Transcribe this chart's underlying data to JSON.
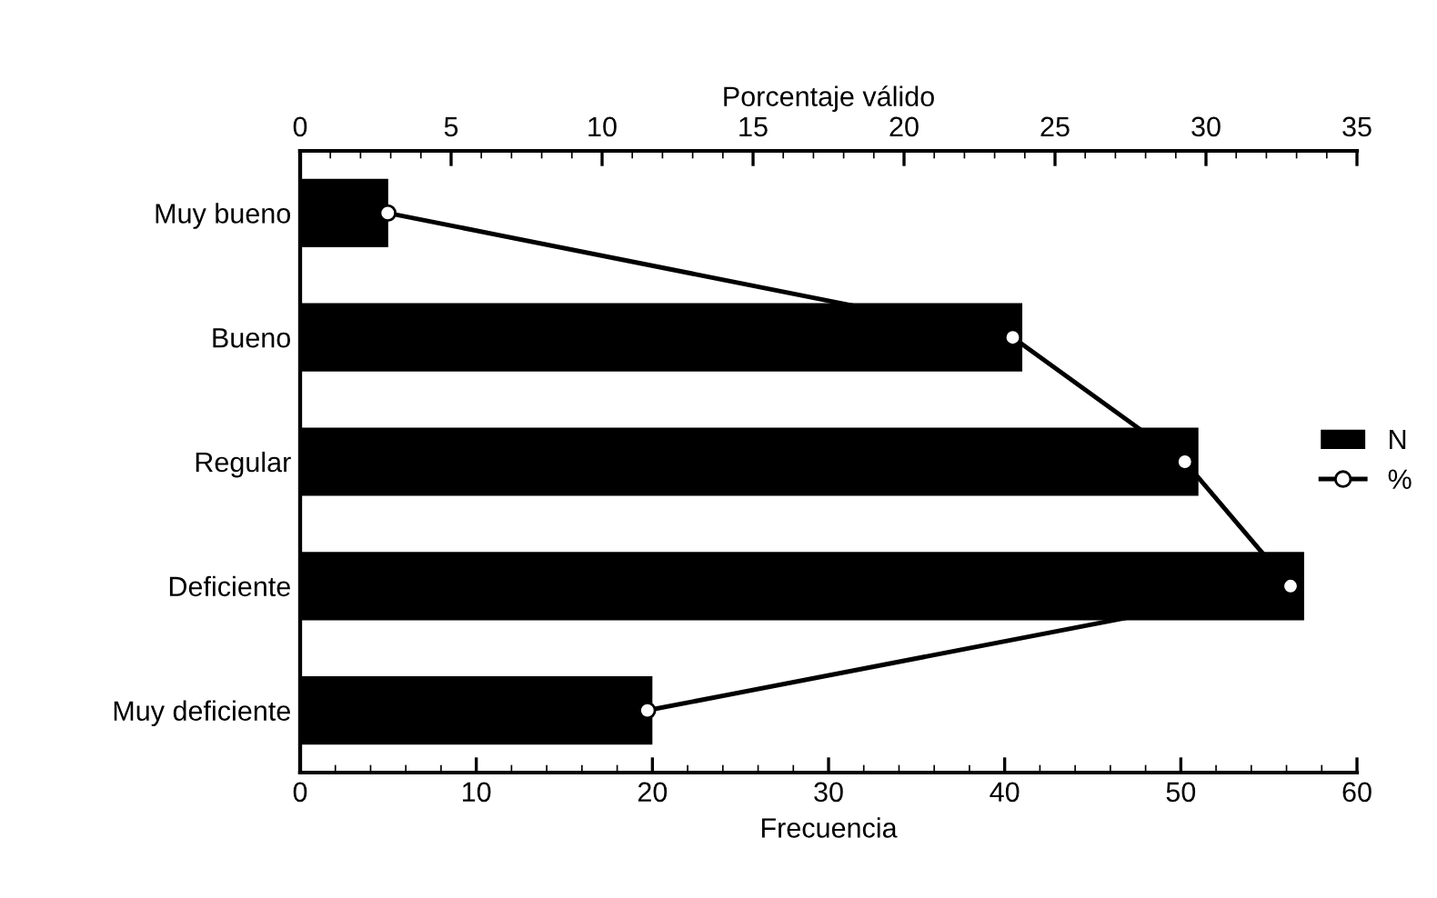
{
  "chart_data": {
    "type": "bar",
    "orientation": "horizontal",
    "xlabel": "Frecuencia",
    "x2label": "Porcentaje válido",
    "categories": [
      "Muy bueno",
      "Bueno",
      "Regular",
      "Deficiente",
      "Muy deficiente"
    ],
    "series": [
      {
        "name": "N",
        "color": "#000000",
        "values": [
          5,
          41,
          51,
          57,
          20
        ]
      },
      {
        "name": "%",
        "type": "line",
        "axis": "x2",
        "color": "#000000",
        "values": [
          2.9,
          23.6,
          29.3,
          32.8,
          11.5
        ]
      }
    ],
    "xlim": [
      0,
      60
    ],
    "xticks": [
      0,
      10,
      20,
      30,
      40,
      50,
      60
    ],
    "x2lim": [
      0,
      35
    ],
    "x2ticks": [
      0,
      5,
      10,
      15,
      20,
      25,
      30,
      35
    ],
    "legend": "right",
    "grid": false,
    "line_style": "solid",
    "marker": "circle"
  }
}
